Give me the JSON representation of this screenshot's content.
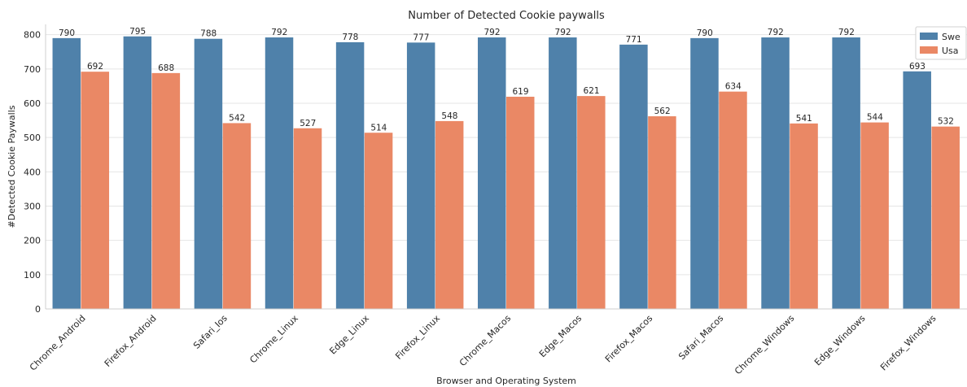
{
  "chart_data": {
    "type": "bar",
    "title": "Number of Detected Cookie paywalls",
    "xlabel": "Browser and Operating System",
    "ylabel": "#Detected Cookie Paywalls",
    "ylim": [
      0,
      830
    ],
    "yticks": [
      0,
      100,
      200,
      300,
      400,
      500,
      600,
      700,
      800
    ],
    "grid": "horizontal",
    "legend_position": "top-right",
    "categories": [
      "Chrome_Android",
      "Firefox_Android",
      "Safari_Ios",
      "Chrome_Linux",
      "Edge_Linux",
      "Firefox_Linux",
      "Chrome_Macos",
      "Edge_Macos",
      "Firefox_Macos",
      "Safari_Macos",
      "Chrome_Windows",
      "Edge_Windows",
      "Firefox_Windows"
    ],
    "series": [
      {
        "name": "Swe",
        "color": "#4f81aa",
        "values": [
          790,
          795,
          788,
          792,
          778,
          777,
          792,
          792,
          771,
          790,
          792,
          792,
          693
        ]
      },
      {
        "name": "Usa",
        "color": "#ea8865",
        "values": [
          692,
          688,
          542,
          527,
          514,
          548,
          619,
          621,
          562,
          634,
          541,
          544,
          532
        ]
      }
    ]
  }
}
